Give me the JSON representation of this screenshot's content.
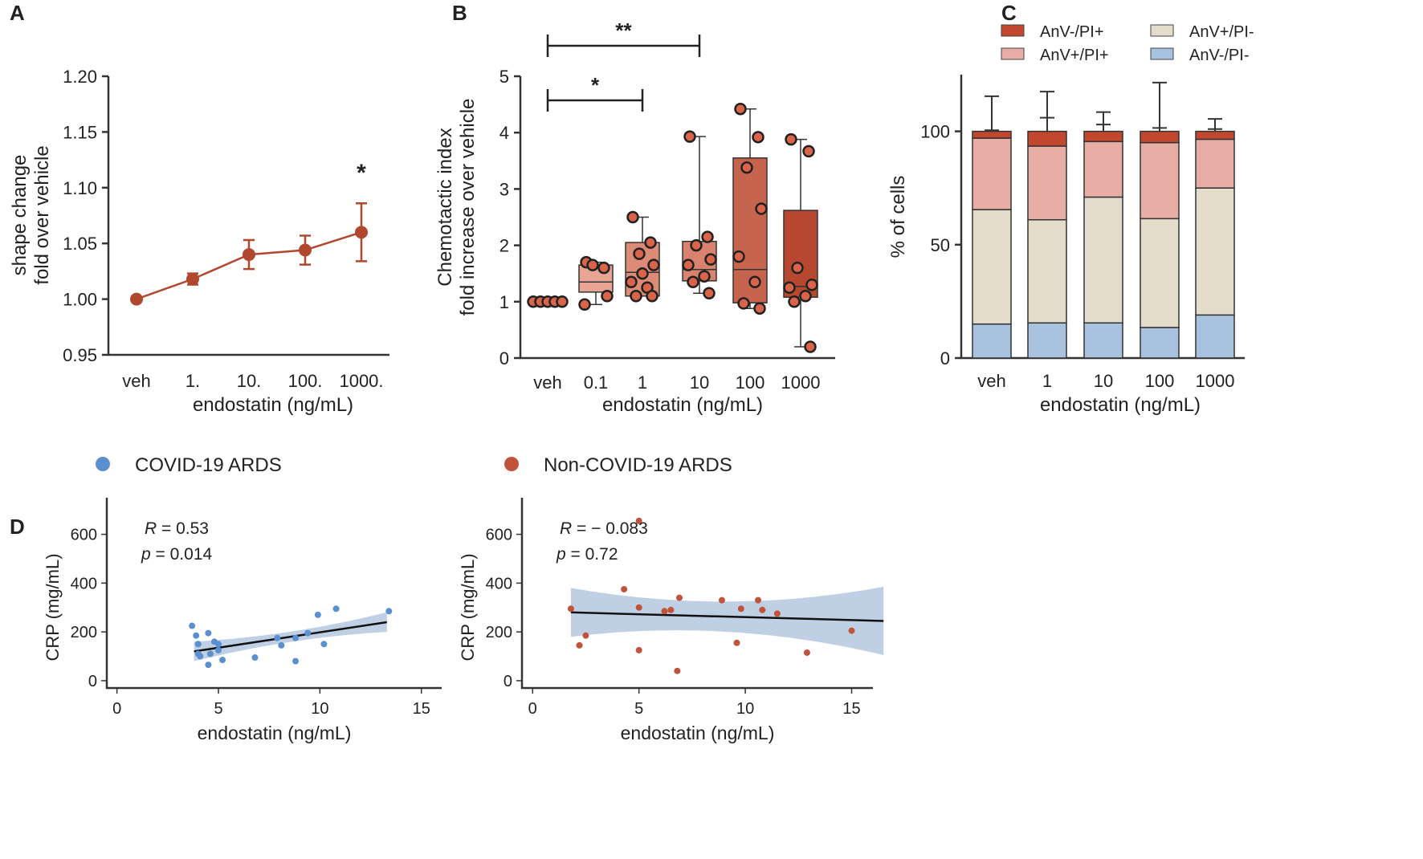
{
  "chart_data": [
    {
      "panel": "A",
      "type": "line",
      "xlabel": "endostatin   (ng/mL)",
      "ylabel_lines": [
        "shape  change",
        "fold over vehicle"
      ],
      "categories": [
        "veh",
        "1.",
        "10.",
        "100.",
        "1000."
      ],
      "values": [
        1.0,
        1.018,
        1.04,
        1.044,
        1.06
      ],
      "errors": [
        0.0,
        0.005,
        0.013,
        0.013,
        0.026
      ],
      "ylim": [
        0.95,
        1.2
      ],
      "yticks": [
        "1.20",
        "1.15",
        "1.10",
        "1.05",
        "1.00",
        "0.95"
      ],
      "significance": {
        "category": "1000.",
        "label": "*"
      },
      "color": "#b0472f"
    },
    {
      "panel": "B",
      "type": "box",
      "xlabel": "endostatin   (ng/mL)",
      "ylabel_lines": [
        "Chemotactic index",
        "fold increase over vehicle"
      ],
      "categories": [
        "veh",
        "0.1",
        "1",
        "10",
        "100",
        "1000"
      ],
      "ylim": [
        0,
        5
      ],
      "yticks": [
        "0",
        "1",
        "2",
        "3",
        "4",
        "5"
      ],
      "boxes": [
        {
          "min": 1.0,
          "q1": 1.0,
          "median": 1.0,
          "q3": 1.0,
          "max": 1.0,
          "points": [
            1.0,
            1.0,
            1.0,
            1.0,
            1.0
          ]
        },
        {
          "min": 0.95,
          "q1": 1.17,
          "median": 1.35,
          "q3": 1.65,
          "max": 1.7,
          "points": [
            1.7,
            1.6,
            1.65,
            1.1,
            0.95
          ]
        },
        {
          "min": 1.1,
          "q1": 1.1,
          "median": 1.52,
          "q3": 2.05,
          "max": 2.5,
          "points": [
            2.5,
            2.05,
            1.85,
            1.65,
            1.35,
            1.25,
            1.1,
            1.1,
            1.5
          ]
        },
        {
          "min": 1.15,
          "q1": 1.37,
          "median": 1.57,
          "q3": 2.07,
          "max": 3.93,
          "points": [
            3.93,
            2.15,
            2.0,
            1.75,
            1.65,
            1.45,
            1.35,
            1.15
          ]
        },
        {
          "min": 0.88,
          "q1": 0.98,
          "median": 1.57,
          "q3": 3.55,
          "max": 4.42,
          "points": [
            4.42,
            3.92,
            3.38,
            2.65,
            1.8,
            1.35,
            0.97,
            0.88
          ]
        },
        {
          "min": 0.2,
          "q1": 1.08,
          "median": 1.27,
          "q3": 2.62,
          "max": 3.88,
          "points": [
            3.88,
            3.67,
            1.6,
            1.3,
            1.25,
            1.1,
            1.0,
            0.2
          ]
        }
      ],
      "box_colors": [
        "#f0a598",
        "#e8a594",
        "#dc8b76",
        "#d9826d",
        "#c7644d",
        "#b8472f"
      ],
      "significance": [
        {
          "from": "veh",
          "to": "1",
          "label": "*"
        },
        {
          "from": "veh",
          "to": "10",
          "label": "**"
        }
      ]
    },
    {
      "panel": "C",
      "type": "stacked_bar",
      "xlabel": "endostatin   (ng/mL)",
      "ylabel": "% of cells",
      "categories": [
        "veh",
        "1",
        "10",
        "100",
        "1000"
      ],
      "ylim": [
        0,
        125
      ],
      "yticks": [
        "0",
        "50",
        "100"
      ],
      "series": [
        {
          "name": "AnV-/PI-",
          "color": "#a9c2df",
          "values": [
            15,
            15.5,
            15.5,
            13.5,
            19
          ],
          "errors": [
            3.5,
            2.5,
            2.5,
            3.5,
            8
          ]
        },
        {
          "name": "AnV+/PI-",
          "color": "#e4dccb",
          "values": [
            50.5,
            45.5,
            55.5,
            48,
            56
          ],
          "errors": [
            19.5,
            29.5,
            14.5,
            27.5,
            17
          ]
        },
        {
          "name": "AnV+/PI+",
          "color": "#e8aea5",
          "values": [
            31.5,
            32.5,
            24.5,
            33.5,
            21.5
          ],
          "errors": [
            3.5,
            12.5,
            7.5,
            6.5,
            4.5
          ]
        },
        {
          "name": "AnV-/PI+",
          "color": "#c2472f",
          "values": [
            3,
            6.5,
            4.5,
            5,
            3.5
          ],
          "errors": [
            15.5,
            17.5,
            8.5,
            21.5,
            5.5
          ]
        }
      ],
      "legend": [
        "AnV-/PI+",
        "AnV+/PI-",
        "AnV+/PI+",
        "AnV-/PI-"
      ]
    },
    {
      "panel": "D",
      "type": "scatter",
      "title": "COVID-19 ARDS",
      "xlabel": "endostatin   (ng/mL)",
      "ylabel": "CRP (mg/mL)",
      "xlim": [
        -0.5,
        16
      ],
      "ylim": [
        -30,
        750
      ],
      "xticks": [
        "0",
        "5",
        "10",
        "15"
      ],
      "yticks": [
        "0",
        "200",
        "400",
        "600"
      ],
      "color": "#5b8fd0",
      "stats": {
        "r_label": "R",
        "r_value": " = 0.53",
        "p_label": "p",
        "p_value": " = 0.014"
      },
      "fit": {
        "x0": 3.8,
        "y0": 120,
        "x1": 13.3,
        "y1": 240
      },
      "band_half_width": [
        40,
        18,
        40
      ],
      "points": [
        {
          "x": 3.7,
          "y": 225
        },
        {
          "x": 3.9,
          "y": 185
        },
        {
          "x": 4.0,
          "y": 150
        },
        {
          "x": 4.0,
          "y": 110
        },
        {
          "x": 4.1,
          "y": 100
        },
        {
          "x": 4.5,
          "y": 195
        },
        {
          "x": 4.5,
          "y": 65
        },
        {
          "x": 4.6,
          "y": 110
        },
        {
          "x": 4.8,
          "y": 160
        },
        {
          "x": 5.0,
          "y": 150
        },
        {
          "x": 5.0,
          "y": 125
        },
        {
          "x": 5.2,
          "y": 85
        },
        {
          "x": 6.8,
          "y": 95
        },
        {
          "x": 7.9,
          "y": 175
        },
        {
          "x": 8.1,
          "y": 145
        },
        {
          "x": 8.8,
          "y": 80
        },
        {
          "x": 8.8,
          "y": 175
        },
        {
          "x": 9.4,
          "y": 195
        },
        {
          "x": 9.9,
          "y": 270
        },
        {
          "x": 10.2,
          "y": 150
        },
        {
          "x": 10.8,
          "y": 295
        },
        {
          "x": 13.4,
          "y": 285
        }
      ]
    },
    {
      "panel": "D",
      "type": "scatter",
      "title": "Non-COVID-19 ARDS",
      "xlabel": "endostatin   (ng/mL)",
      "ylabel": "CRP (mg/mL)",
      "xlim": [
        -0.5,
        16
      ],
      "ylim": [
        -30,
        750
      ],
      "xticks": [
        "0",
        "5",
        "10",
        "15"
      ],
      "yticks": [
        "0",
        "200",
        "400",
        "600"
      ],
      "color": "#c0533c",
      "stats": {
        "r_label": "R",
        "r_value": " = − 0.083",
        "p_label": "p",
        "p_value": " = 0.72"
      },
      "fit": {
        "x0": 1.8,
        "y0": 280,
        "x1": 16.5,
        "y1": 245
      },
      "band_half_width": [
        100,
        40,
        140
      ],
      "points": [
        {
          "x": 5.0,
          "y": 655
        },
        {
          "x": 1.8,
          "y": 295
        },
        {
          "x": 2.2,
          "y": 145
        },
        {
          "x": 2.5,
          "y": 185
        },
        {
          "x": 4.3,
          "y": 375
        },
        {
          "x": 5.0,
          "y": 300
        },
        {
          "x": 5.0,
          "y": 125
        },
        {
          "x": 6.2,
          "y": 285
        },
        {
          "x": 6.5,
          "y": 290
        },
        {
          "x": 6.8,
          "y": 40
        },
        {
          "x": 6.9,
          "y": 340
        },
        {
          "x": 8.9,
          "y": 330
        },
        {
          "x": 9.6,
          "y": 155
        },
        {
          "x": 9.8,
          "y": 295
        },
        {
          "x": 10.6,
          "y": 330
        },
        {
          "x": 10.8,
          "y": 290
        },
        {
          "x": 11.5,
          "y": 275
        },
        {
          "x": 12.9,
          "y": 115
        },
        {
          "x": 15.0,
          "y": 205
        }
      ]
    }
  ],
  "panel_labels": [
    "A",
    "B",
    "C",
    "D"
  ]
}
